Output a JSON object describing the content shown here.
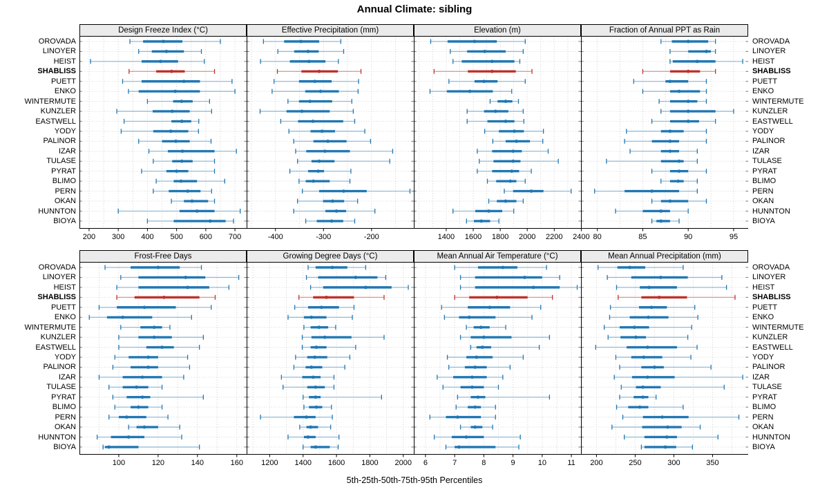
{
  "title": "Annual Climate: sibling",
  "caption": "5th-25th-50th-75th-95th Percentiles",
  "highlight_site": "SHABLISS",
  "colors": {
    "normal": "#1f77b4",
    "highlight": "#bf3228",
    "header_bg": "#ebebeb",
    "panel_border": "#000000",
    "grid": "#cccccc"
  },
  "sites": [
    "OROVADA",
    "LINOYER",
    "HEIST",
    "SHABLISS",
    "PUETT",
    "ENKO",
    "WINTERMUTE",
    "KUNZLER",
    "EASTWELL",
    "YODY",
    "PALINOR",
    "IZAR",
    "TULASE",
    "PYRAT",
    "BLIMO",
    "PERN",
    "OKAN",
    "HUNNTON",
    "BIOYA"
  ],
  "chart_data": {
    "type": "table",
    "note": "Trellis dot-whisker plot; per site values are [p5,p25,p50,p75,p95] percentiles",
    "legend": "5th-25th-50th-75th-95th Percentiles",
    "grid": true
  },
  "panels": [
    {
      "title": "Design Freeze Index (°C)",
      "xlim": [
        167,
        740
      ],
      "ticks": [
        200,
        300,
        400,
        500,
        600,
        700
      ],
      "values": [
        [
          340,
          385,
          455,
          520,
          650
        ],
        [
          370,
          415,
          465,
          525,
          585
        ],
        [
          205,
          380,
          445,
          505,
          595
        ],
        [
          337,
          430,
          483,
          528,
          630
        ],
        [
          315,
          380,
          525,
          580,
          690
        ],
        [
          335,
          370,
          495,
          580,
          700
        ],
        [
          400,
          488,
          517,
          555,
          613
        ],
        [
          295,
          418,
          485,
          545,
          620
        ],
        [
          320,
          482,
          518,
          550,
          576
        ],
        [
          310,
          420,
          480,
          540,
          575
        ],
        [
          370,
          450,
          497,
          545,
          618
        ],
        [
          405,
          470,
          520,
          630,
          705
        ],
        [
          420,
          485,
          518,
          555,
          630
        ],
        [
          380,
          465,
          500,
          540,
          630
        ],
        [
          430,
          490,
          515,
          570,
          665
        ],
        [
          420,
          473,
          538,
          582,
          620
        ],
        [
          482,
          525,
          553,
          608,
          630
        ],
        [
          300,
          510,
          570,
          630,
          718
        ],
        [
          400,
          490,
          615,
          668,
          695
        ]
      ]
    },
    {
      "title": "Effective Precipitation (mm)",
      "xlim": [
        -460,
        -112
      ],
      "ticks": [
        -400,
        -300,
        -200
      ],
      "values": [
        [
          -425,
          -382,
          -347,
          -309,
          -264
        ],
        [
          -395,
          -361,
          -332,
          -310,
          -258
        ],
        [
          -431,
          -370,
          -330,
          -296,
          -269
        ],
        [
          -396,
          -346,
          -309,
          -270,
          -222
        ],
        [
          -403,
          -351,
          -318,
          -283,
          -227
        ],
        [
          -407,
          -338,
          -306,
          -268,
          -228
        ],
        [
          -374,
          -351,
          -328,
          -282,
          -241
        ],
        [
          -432,
          -377,
          -345,
          -287,
          -238
        ],
        [
          -389,
          -353,
          -322,
          -259,
          -235
        ],
        [
          -372,
          -327,
          -303,
          -276,
          -214
        ],
        [
          -362,
          -321,
          -291,
          -252,
          -202
        ],
        [
          -358,
          -336,
          -297,
          -245,
          -156
        ],
        [
          -354,
          -325,
          -309,
          -277,
          -162
        ],
        [
          -370,
          -332,
          -311,
          -299,
          -243
        ],
        [
          -351,
          -337,
          -321,
          -287,
          -245
        ],
        [
          -344,
          -309,
          -258,
          -210,
          -120
        ],
        [
          -354,
          -301,
          -281,
          -257,
          -229
        ],
        [
          -362,
          -296,
          -273,
          -253,
          -193
        ],
        [
          -337,
          -314,
          -283,
          -259,
          -235
        ]
      ]
    },
    {
      "title": "Elevation (m)",
      "xlim": [
        1160,
        2398
      ],
      "ticks": [
        1400,
        1600,
        1800,
        2000,
        2200,
        2400
      ],
      "values": [
        [
          1285,
          1410,
          1610,
          1775,
          1985
        ],
        [
          1430,
          1555,
          1685,
          1840,
          1970
        ],
        [
          1450,
          1515,
          1740,
          1905,
          1945
        ],
        [
          1310,
          1560,
          1740,
          1915,
          2035
        ],
        [
          1420,
          1610,
          1680,
          1780,
          1985
        ],
        [
          1280,
          1405,
          1575,
          1745,
          1885
        ],
        [
          1725,
          1780,
          1840,
          1890,
          1935
        ],
        [
          1555,
          1680,
          1765,
          1860,
          1970
        ],
        [
          1555,
          1705,
          1840,
          1905,
          1975
        ],
        [
          1685,
          1790,
          1905,
          1975,
          2120
        ],
        [
          1745,
          1840,
          1920,
          2020,
          2115
        ],
        [
          1630,
          1740,
          1895,
          1960,
          2155
        ],
        [
          1645,
          1750,
          1895,
          1950,
          2230
        ],
        [
          1630,
          1740,
          1885,
          1940,
          2030
        ],
        [
          1705,
          1770,
          1875,
          1920,
          1985
        ],
        [
          1830,
          1895,
          2030,
          2120,
          2325
        ],
        [
          1715,
          1775,
          1840,
          1920,
          1970
        ],
        [
          1450,
          1615,
          1715,
          1815,
          1900
        ],
        [
          1550,
          1605,
          1660,
          1725,
          1790
        ]
      ]
    },
    {
      "title": "Fraction of Annual PPT as Rain",
      "xlim": [
        78.2,
        96.6
      ],
      "ticks": [
        80,
        85,
        90,
        95
      ],
      "values": [
        [
          87,
          88.2,
          90,
          92.2,
          93
        ],
        [
          88,
          90,
          92,
          92.5,
          93
        ],
        [
          88,
          88.3,
          91,
          93,
          96
        ],
        [
          85,
          88,
          90,
          91.3,
          93
        ],
        [
          84,
          87.5,
          88,
          90,
          92
        ],
        [
          85,
          88,
          89,
          91.3,
          92
        ],
        [
          86.8,
          88,
          90,
          91,
          92
        ],
        [
          87,
          88,
          90,
          93,
          95
        ],
        [
          86,
          88,
          90,
          91.2,
          93
        ],
        [
          83.2,
          87,
          88,
          89.5,
          92
        ],
        [
          83,
          86,
          88,
          89,
          92
        ],
        [
          83.6,
          87,
          88,
          89,
          91
        ],
        [
          81,
          87,
          89,
          89.5,
          91
        ],
        [
          86,
          88,
          89,
          90,
          92
        ],
        [
          87,
          88,
          88.9,
          89.5,
          91
        ],
        [
          79.7,
          83,
          86,
          89,
          91
        ],
        [
          86,
          87,
          88,
          90,
          92
        ],
        [
          82,
          85,
          87,
          88,
          90
        ],
        [
          86,
          86.5,
          87,
          88,
          89
        ]
      ]
    },
    {
      "title": "Frost-Free Days",
      "xlim": [
        80,
        165
      ],
      "ticks": [
        100,
        120,
        140,
        160
      ],
      "values": [
        [
          93,
          106,
          120,
          131,
          142
        ],
        [
          101,
          110,
          134,
          144,
          161
        ],
        [
          99,
          110,
          135,
          146,
          156
        ],
        [
          99,
          108,
          123,
          141,
          149
        ],
        [
          90,
          99,
          113,
          129,
          147
        ],
        [
          85,
          94,
          102,
          117,
          137
        ],
        [
          101,
          111,
          118,
          122,
          126
        ],
        [
          100,
          110,
          118,
          127,
          143
        ],
        [
          100,
          114,
          122,
          128,
          141
        ],
        [
          98,
          105,
          115,
          120,
          135
        ],
        [
          97,
          106,
          115,
          120,
          136
        ],
        [
          90,
          102,
          112,
          122,
          133
        ],
        [
          95,
          102,
          109,
          115,
          122
        ],
        [
          97,
          104,
          112,
          116,
          143
        ],
        [
          98,
          106,
          110,
          115,
          122
        ],
        [
          95,
          100,
          104,
          114,
          125
        ],
        [
          105,
          109,
          113,
          120,
          131
        ],
        [
          89,
          96,
          105,
          113,
          132
        ],
        [
          92,
          93,
          95,
          110,
          141
        ]
      ]
    },
    {
      "title": "Growing Degree Days (°C)",
      "xlim": [
        1062,
        2063
      ],
      "ticks": [
        1200,
        1400,
        1600,
        1800,
        2000
      ],
      "values": [
        [
          1430,
          1475,
          1575,
          1665,
          1775
        ],
        [
          1420,
          1490,
          1715,
          1845,
          1895
        ],
        [
          1445,
          1520,
          1775,
          1930,
          2030
        ],
        [
          1375,
          1460,
          1540,
          1705,
          1885
        ],
        [
          1350,
          1430,
          1510,
          1615,
          1705
        ],
        [
          1310,
          1405,
          1450,
          1540,
          1695
        ],
        [
          1405,
          1445,
          1495,
          1550,
          1595
        ],
        [
          1395,
          1450,
          1530,
          1690,
          1885
        ],
        [
          1395,
          1445,
          1480,
          1540,
          1715
        ],
        [
          1355,
          1425,
          1470,
          1545,
          1680
        ],
        [
          1345,
          1415,
          1450,
          1515,
          1650
        ],
        [
          1270,
          1395,
          1460,
          1505,
          1585
        ],
        [
          1280,
          1425,
          1475,
          1530,
          1585
        ],
        [
          1400,
          1435,
          1475,
          1505,
          1870
        ],
        [
          1405,
          1435,
          1480,
          1515,
          1570
        ],
        [
          1145,
          1345,
          1420,
          1475,
          1575
        ],
        [
          1380,
          1420,
          1445,
          1490,
          1565
        ],
        [
          1310,
          1405,
          1430,
          1475,
          1615
        ],
        [
          1400,
          1445,
          1475,
          1560,
          1610
        ]
      ]
    },
    {
      "title": "Mean Annual Air Temperature (°C)",
      "xlim": [
        5.6,
        11.33
      ],
      "ticks": [
        6,
        7,
        8,
        9,
        10,
        11
      ],
      "values": [
        [
          7.0,
          7.8,
          8.65,
          9.15,
          10.15
        ],
        [
          7.2,
          7.7,
          9.4,
          10.0,
          10.6
        ],
        [
          7.2,
          7.7,
          9.7,
          10.6,
          11.2
        ],
        [
          7.0,
          7.5,
          8.45,
          9.5,
          10.35
        ],
        [
          6.55,
          7.45,
          8.2,
          8.9,
          9.95
        ],
        [
          6.65,
          7.15,
          7.5,
          8.4,
          9.65
        ],
        [
          7.4,
          7.65,
          7.9,
          8.2,
          8.75
        ],
        [
          7.2,
          7.55,
          8.0,
          8.95,
          10.25
        ],
        [
          7.55,
          7.75,
          7.95,
          8.25,
          9.9
        ],
        [
          6.75,
          7.4,
          7.75,
          8.3,
          9.35
        ],
        [
          6.8,
          7.35,
          7.7,
          8.1,
          8.9
        ],
        [
          6.4,
          6.95,
          7.6,
          8.1,
          8.65
        ],
        [
          6.6,
          7.2,
          7.6,
          8.0,
          8.5
        ],
        [
          7.1,
          7.55,
          7.8,
          8.05,
          10.25
        ],
        [
          7.05,
          7.45,
          7.7,
          7.9,
          8.4
        ],
        [
          6.15,
          6.7,
          7.1,
          7.9,
          8.4
        ],
        [
          7.2,
          7.55,
          7.7,
          7.95,
          8.3
        ],
        [
          6.3,
          6.9,
          7.4,
          8.0,
          9.25
        ],
        [
          6.7,
          7.0,
          7.15,
          8.4,
          9.2
        ]
      ]
    },
    {
      "title": "Mean Annual Precipitation (mm)",
      "xlim": [
        180,
        396
      ],
      "ticks": [
        200,
        250,
        300,
        350
      ],
      "values": [
        [
          202,
          227,
          243,
          263,
          312
        ],
        [
          214,
          245,
          283,
          318,
          362
        ],
        [
          226,
          256,
          268,
          304,
          368
        ],
        [
          228,
          258,
          281,
          317,
          379
        ],
        [
          218,
          255,
          271,
          291,
          327
        ],
        [
          217,
          243,
          267,
          293,
          331
        ],
        [
          210,
          230,
          249,
          268,
          323
        ],
        [
          215,
          231,
          251,
          264,
          318
        ],
        [
          199,
          239,
          266,
          304,
          330
        ],
        [
          225,
          245,
          261,
          285,
          322
        ],
        [
          230,
          258,
          275,
          287,
          348
        ],
        [
          223,
          246,
          266,
          301,
          389
        ],
        [
          232,
          251,
          260,
          283,
          365
        ],
        [
          230,
          248,
          260,
          267,
          277
        ],
        [
          226,
          241,
          256,
          267,
          312
        ],
        [
          234,
          260,
          285,
          319,
          384
        ],
        [
          220,
          259,
          292,
          310,
          334
        ],
        [
          236,
          262,
          291,
          304,
          357
        ],
        [
          258,
          262,
          289,
          303,
          324
        ]
      ]
    }
  ]
}
